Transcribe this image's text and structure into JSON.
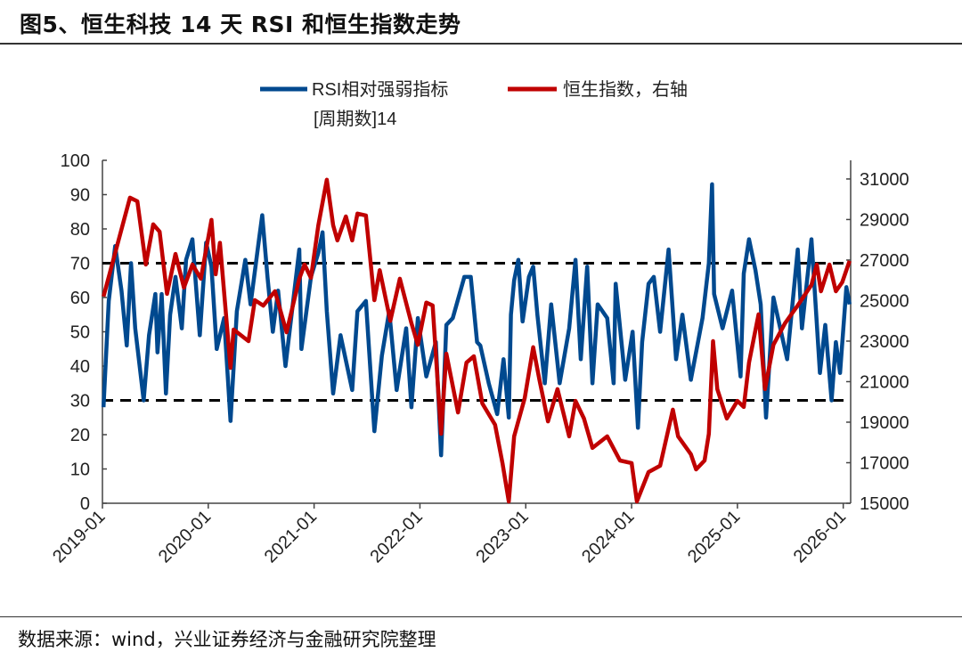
{
  "title": "图5、恒生科技 14 天 RSI 和恒生指数走势",
  "source": "数据来源：wind，兴业证券经济与金融研究院整理",
  "chart_data": {
    "type": "line",
    "title": "图5、恒生科技 14 天 RSI 和恒生指数走势",
    "xlabel": "",
    "ylabel": "",
    "xlim": [
      2019.0,
      2026.07
    ],
    "ylim_left": [
      0,
      100
    ],
    "ylim_right": [
      15000,
      31920
    ],
    "x_ticks": [
      2019,
      2020,
      2021,
      2022,
      2023,
      2024,
      2025,
      2026
    ],
    "x_tick_labels": [
      "2019-01",
      "2020-01",
      "2021-01",
      "2022-01",
      "2023-01",
      "2024-01",
      "2025-01",
      "2026-01"
    ],
    "left_ticks": [
      0,
      10,
      20,
      30,
      40,
      50,
      60,
      70,
      80,
      90,
      100
    ],
    "left_tick_labels": [
      "0",
      "10",
      "20",
      "30",
      "40",
      "50",
      "60",
      "70",
      "80",
      "90",
      "100"
    ],
    "right_ticks": [
      15000,
      17000,
      19000,
      21000,
      23000,
      25000,
      27000,
      29000,
      31000
    ],
    "right_tick_labels": [
      "15000",
      "17000",
      "19000",
      "21000",
      "23000",
      "25000",
      "27000",
      "29000",
      "31000"
    ],
    "reference_lines": [
      70,
      30
    ],
    "legend_position": "top-center",
    "grid": false,
    "series": [
      {
        "name": "RSI相对强弱指标",
        "name_line2": "[周期数]14",
        "axis": "left",
        "color": "#00498F",
        "points": [
          [
            2019.01,
            28
          ],
          [
            2019.06,
            59
          ],
          [
            2019.12,
            75
          ],
          [
            2019.18,
            62
          ],
          [
            2019.23,
            46
          ],
          [
            2019.27,
            70
          ],
          [
            2019.31,
            51
          ],
          [
            2019.39,
            30
          ],
          [
            2019.44,
            49
          ],
          [
            2019.5,
            61
          ],
          [
            2019.52,
            44
          ],
          [
            2019.56,
            61
          ],
          [
            2019.6,
            32
          ],
          [
            2019.64,
            55
          ],
          [
            2019.69,
            66
          ],
          [
            2019.75,
            51
          ],
          [
            2019.79,
            71
          ],
          [
            2019.85,
            77
          ],
          [
            2019.92,
            49
          ],
          [
            2019.98,
            76
          ],
          [
            2020.03,
            69
          ],
          [
            2020.08,
            45
          ],
          [
            2020.15,
            54
          ],
          [
            2020.21,
            24
          ],
          [
            2020.27,
            56
          ],
          [
            2020.35,
            71
          ],
          [
            2020.4,
            58
          ],
          [
            2020.48,
            77
          ],
          [
            2020.51,
            84
          ],
          [
            2020.56,
            66
          ],
          [
            2020.61,
            50
          ],
          [
            2020.66,
            62
          ],
          [
            2020.73,
            40
          ],
          [
            2020.86,
            74
          ],
          [
            2020.88,
            45
          ],
          [
            2020.97,
            66
          ],
          [
            2021.04,
            73
          ],
          [
            2021.08,
            79
          ],
          [
            2021.12,
            56
          ],
          [
            2021.18,
            32
          ],
          [
            2021.25,
            49
          ],
          [
            2021.36,
            33
          ],
          [
            2021.41,
            56
          ],
          [
            2021.49,
            59
          ],
          [
            2021.57,
            21
          ],
          [
            2021.64,
            43
          ],
          [
            2021.71,
            56
          ],
          [
            2021.78,
            33
          ],
          [
            2021.87,
            51
          ],
          [
            2021.92,
            28
          ],
          [
            2021.98,
            54
          ],
          [
            2022.06,
            37
          ],
          [
            2022.15,
            47
          ],
          [
            2022.2,
            14
          ],
          [
            2022.25,
            52
          ],
          [
            2022.31,
            54
          ],
          [
            2022.42,
            66
          ],
          [
            2022.48,
            66
          ],
          [
            2022.54,
            47
          ],
          [
            2022.57,
            46
          ],
          [
            2022.65,
            35
          ],
          [
            2022.73,
            26
          ],
          [
            2022.79,
            42
          ],
          [
            2022.84,
            25
          ],
          [
            2022.86,
            55
          ],
          [
            2022.89,
            65
          ],
          [
            2022.93,
            71
          ],
          [
            2022.97,
            53
          ],
          [
            2023.03,
            66
          ],
          [
            2023.07,
            69
          ],
          [
            2023.11,
            55
          ],
          [
            2023.18,
            35
          ],
          [
            2023.24,
            58
          ],
          [
            2023.32,
            35
          ],
          [
            2023.41,
            51
          ],
          [
            2023.47,
            71
          ],
          [
            2023.52,
            42
          ],
          [
            2023.58,
            69
          ],
          [
            2023.63,
            35
          ],
          [
            2023.68,
            58
          ],
          [
            2023.77,
            54
          ],
          [
            2023.83,
            35
          ],
          [
            2023.85,
            64
          ],
          [
            2023.94,
            36
          ],
          [
            2024.01,
            50
          ],
          [
            2024.06,
            22
          ],
          [
            2024.1,
            47
          ],
          [
            2024.16,
            64
          ],
          [
            2024.21,
            66
          ],
          [
            2024.27,
            50
          ],
          [
            2024.35,
            74
          ],
          [
            2024.42,
            42
          ],
          [
            2024.48,
            55
          ],
          [
            2024.56,
            36
          ],
          [
            2024.67,
            54
          ],
          [
            2024.73,
            70
          ],
          [
            2024.76,
            93
          ],
          [
            2024.78,
            61
          ],
          [
            2024.86,
            51
          ],
          [
            2024.95,
            62
          ],
          [
            2025.03,
            37
          ],
          [
            2025.06,
            67
          ],
          [
            2025.11,
            77
          ],
          [
            2025.17,
            68
          ],
          [
            2025.22,
            58
          ],
          [
            2025.27,
            25
          ],
          [
            2025.34,
            60
          ],
          [
            2025.47,
            42
          ],
          [
            2025.57,
            74
          ],
          [
            2025.61,
            51
          ],
          [
            2025.7,
            77
          ],
          [
            2025.78,
            38
          ],
          [
            2025.83,
            52
          ],
          [
            2025.89,
            30
          ],
          [
            2025.93,
            47
          ],
          [
            2025.97,
            38
          ],
          [
            2026.03,
            63
          ],
          [
            2026.06,
            58
          ]
        ]
      },
      {
        "name": "恒生指数，右轴",
        "axis": "right",
        "color": "#C00000",
        "points": [
          [
            2019.01,
            25200
          ],
          [
            2019.26,
            30080
          ],
          [
            2019.33,
            29900
          ],
          [
            2019.41,
            26780
          ],
          [
            2019.48,
            28760
          ],
          [
            2019.54,
            28400
          ],
          [
            2019.61,
            25330
          ],
          [
            2019.69,
            27300
          ],
          [
            2019.77,
            25640
          ],
          [
            2019.85,
            26780
          ],
          [
            2019.93,
            26080
          ],
          [
            2020.03,
            28980
          ],
          [
            2020.07,
            26300
          ],
          [
            2020.11,
            27850
          ],
          [
            2020.21,
            21680
          ],
          [
            2020.24,
            23570
          ],
          [
            2020.38,
            23000
          ],
          [
            2020.44,
            25020
          ],
          [
            2020.52,
            24750
          ],
          [
            2020.63,
            25460
          ],
          [
            2020.74,
            23440
          ],
          [
            2020.86,
            26080
          ],
          [
            2020.91,
            26780
          ],
          [
            2020.97,
            26120
          ],
          [
            2021.04,
            28720
          ],
          [
            2021.12,
            30960
          ],
          [
            2021.18,
            28720
          ],
          [
            2021.22,
            27970
          ],
          [
            2021.3,
            29150
          ],
          [
            2021.36,
            27970
          ],
          [
            2021.41,
            29290
          ],
          [
            2021.49,
            29200
          ],
          [
            2021.57,
            25020
          ],
          [
            2021.62,
            26500
          ],
          [
            2021.72,
            24000
          ],
          [
            2021.81,
            26080
          ],
          [
            2021.92,
            23880
          ],
          [
            2021.98,
            22820
          ],
          [
            2022.06,
            24900
          ],
          [
            2022.12,
            24760
          ],
          [
            2022.2,
            18430
          ],
          [
            2022.25,
            22380
          ],
          [
            2022.36,
            19480
          ],
          [
            2022.44,
            21940
          ],
          [
            2022.51,
            22250
          ],
          [
            2022.59,
            19920
          ],
          [
            2022.71,
            18870
          ],
          [
            2022.78,
            16980
          ],
          [
            2022.84,
            15090
          ],
          [
            2022.89,
            18300
          ],
          [
            2022.99,
            20190
          ],
          [
            2023.07,
            22700
          ],
          [
            2023.13,
            21070
          ],
          [
            2023.21,
            19040
          ],
          [
            2023.3,
            20630
          ],
          [
            2023.41,
            18300
          ],
          [
            2023.47,
            20050
          ],
          [
            2023.55,
            19180
          ],
          [
            2023.63,
            17730
          ],
          [
            2023.77,
            18300
          ],
          [
            2023.89,
            17110
          ],
          [
            2024.0,
            16980
          ],
          [
            2024.05,
            15090
          ],
          [
            2024.16,
            16540
          ],
          [
            2024.27,
            16850
          ],
          [
            2024.39,
            19620
          ],
          [
            2024.44,
            18300
          ],
          [
            2024.56,
            17420
          ],
          [
            2024.61,
            16670
          ],
          [
            2024.69,
            17110
          ],
          [
            2024.73,
            18430
          ],
          [
            2024.77,
            23000
          ],
          [
            2024.81,
            20630
          ],
          [
            2024.9,
            19180
          ],
          [
            2025.0,
            20050
          ],
          [
            2025.06,
            19750
          ],
          [
            2025.11,
            21940
          ],
          [
            2025.2,
            24320
          ],
          [
            2025.26,
            20630
          ],
          [
            2025.34,
            22820
          ],
          [
            2025.45,
            23880
          ],
          [
            2025.57,
            24760
          ],
          [
            2025.7,
            25770
          ],
          [
            2025.75,
            26780
          ],
          [
            2025.79,
            25460
          ],
          [
            2025.87,
            26780
          ],
          [
            2025.93,
            25460
          ],
          [
            2025.99,
            25900
          ],
          [
            2026.06,
            26960
          ]
        ]
      }
    ]
  }
}
